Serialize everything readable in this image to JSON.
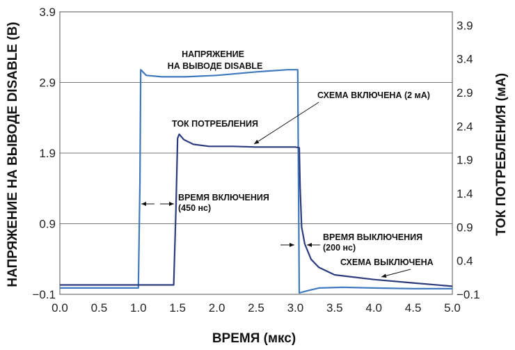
{
  "chart_data": {
    "type": "line",
    "xlabel": "ВРЕМЯ (мкс)",
    "ylabel_left": "НАПРЯЖЕНИЕ НА ВЫВОДЕ DISABLE (В)",
    "ylabel_right": "ТОК ПОТРЕБЛЕНИЯ (мА)",
    "xlim": [
      0.0,
      5.0
    ],
    "ylim_left": [
      -0.1,
      3.9
    ],
    "ylim_right": [
      -0.1,
      4.1
    ],
    "x_ticks": [
      "0.0",
      "0.5",
      "1.0",
      "1.5",
      "2.0",
      "2.5",
      "3.0",
      "3.5",
      "4.0",
      "4.5",
      "5.0"
    ],
    "y_left_ticks": [
      "3.9",
      "2.9",
      "1.9",
      "0.9",
      "−0.1"
    ],
    "y_right_ticks": [
      "3.9",
      "3.4",
      "2.9",
      "2.4",
      "1.9",
      "1.4",
      "0.9",
      "0.4",
      "−0.1"
    ],
    "grid": "horizontal at left-axis ticks",
    "colors": {
      "voltage": "#3f78bd",
      "current": "#2b3b7e",
      "grid": "#777777",
      "text": "#111111"
    },
    "series": [
      {
        "name": "НАПРЯЖЕНИЕ НА ВЫВОДЕ DISABLE",
        "axis": "left",
        "points": [
          [
            0.0,
            -0.01
          ],
          [
            1.0,
            -0.01
          ],
          [
            1.02,
            1.5
          ],
          [
            1.03,
            3.08
          ],
          [
            1.1,
            3.0
          ],
          [
            1.3,
            2.98
          ],
          [
            1.6,
            2.98
          ],
          [
            2.0,
            3.0
          ],
          [
            2.5,
            3.05
          ],
          [
            2.9,
            3.08
          ],
          [
            3.0,
            3.08
          ],
          [
            3.03,
            3.08
          ],
          [
            3.04,
            1.5
          ],
          [
            3.05,
            -0.08
          ],
          [
            3.15,
            -0.05
          ],
          [
            3.3,
            -0.01
          ],
          [
            3.6,
            0.0
          ],
          [
            4.0,
            -0.01
          ],
          [
            4.5,
            -0.02
          ],
          [
            5.0,
            -0.02
          ]
        ]
      },
      {
        "name": "ТОК ПОТРЕБЛЕНИЯ",
        "axis": "right",
        "points": [
          [
            0.0,
            0.04
          ],
          [
            1.0,
            0.04
          ],
          [
            1.45,
            0.04
          ],
          [
            1.48,
            1.2
          ],
          [
            1.5,
            2.22
          ],
          [
            1.52,
            2.28
          ],
          [
            1.58,
            2.2
          ],
          [
            1.7,
            2.13
          ],
          [
            1.9,
            2.1
          ],
          [
            2.2,
            2.1
          ],
          [
            2.5,
            2.09
          ],
          [
            2.8,
            2.09
          ],
          [
            3.0,
            2.09
          ],
          [
            3.05,
            2.08
          ],
          [
            3.06,
            1.5
          ],
          [
            3.08,
            0.9
          ],
          [
            3.12,
            0.65
          ],
          [
            3.2,
            0.42
          ],
          [
            3.3,
            0.3
          ],
          [
            3.5,
            0.19
          ],
          [
            4.0,
            0.12
          ],
          [
            4.5,
            0.07
          ],
          [
            5.0,
            0.02
          ]
        ]
      }
    ],
    "annotations": {
      "voltage_label_line1": "НАПРЯЖЕНИЕ",
      "voltage_label_line2": "НА ВЫВОДЕ DISABLE",
      "circuit_on": "СХЕМА ВКЛЮЧЕНА (2 мА)",
      "supply_current": "ТОК ПОТРЕБЛЕНИЯ",
      "turn_on_time_line1": "ВРЕМЯ ВКЛЮЧЕНИЯ",
      "turn_on_time_line2": "(450 нс)",
      "turn_off_time_line1": "ВРЕМЯ ВЫКЛЮЧЕНИЯ",
      "turn_off_time_line2": "(200 нс)",
      "circuit_off": "СХЕМА ВЫКЛЮЧЕНА"
    }
  }
}
